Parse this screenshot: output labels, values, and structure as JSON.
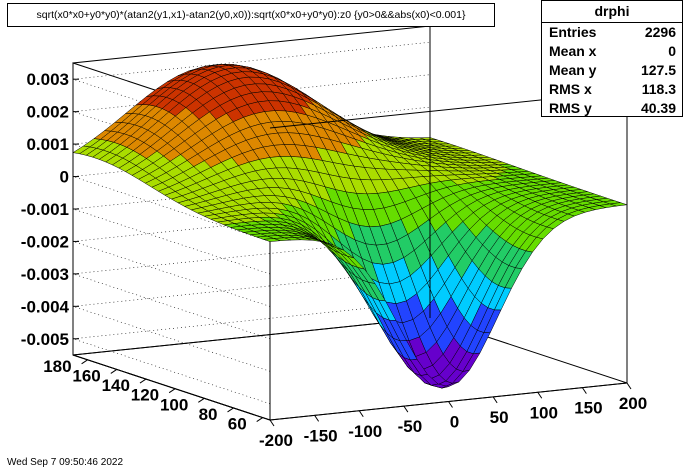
{
  "title": "sqrt(x0*x0+y0*y0)*(atan2(y1,x1)-atan2(y0,x0)):sqrt(x0*x0+y0*y0):z0 {y0>0&&abs(x0)<0.001}",
  "stats": {
    "name": "drphi",
    "rows": [
      {
        "label": "Entries",
        "value": "2296"
      },
      {
        "label": "Mean x",
        "value": "0"
      },
      {
        "label": "Mean y",
        "value": "127.5"
      },
      {
        "label": "RMS x",
        "value": "118.3"
      },
      {
        "label": "RMS y",
        "value": "40.39"
      }
    ]
  },
  "timestamp": "Wed Sep  7 09:50:46 2022",
  "chart_data": {
    "type": "surface",
    "x_ticks": [
      "-200",
      "-150",
      "-100",
      "-50",
      "0",
      "50",
      "100",
      "150",
      "200"
    ],
    "y_ticks": [
      "60",
      "80",
      "100",
      "120",
      "140",
      "160",
      "180"
    ],
    "z_ticks": [
      "0.003",
      "0.002",
      "0.001",
      "0",
      "-0.001",
      "-0.002",
      "-0.003",
      "-0.004",
      "-0.005"
    ],
    "xlim": [
      -200,
      200
    ],
    "ylim": [
      55,
      190
    ],
    "zlim": [
      -0.0055,
      0.0035
    ],
    "surface_features": [
      {
        "label": "peak",
        "x": -50,
        "y": 175,
        "z": 0.0032
      },
      {
        "label": "trough",
        "x": 0,
        "y": 62,
        "z": -0.0052
      }
    ],
    "palette": [
      "#6600cc",
      "#2244ff",
      "#00ccff",
      "#22cc66",
      "#66dd00",
      "#aadd00",
      "#dd8800",
      "#cc3300"
    ]
  }
}
